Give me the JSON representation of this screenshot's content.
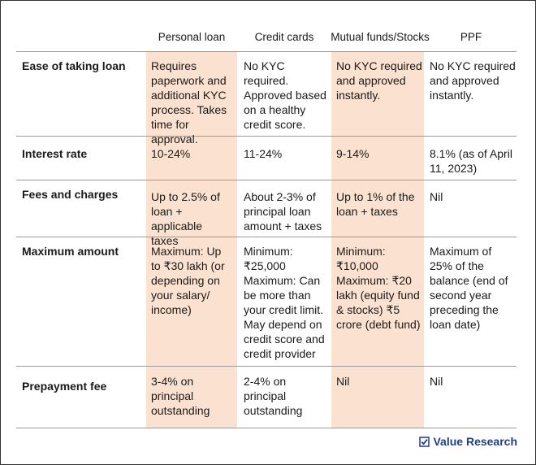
{
  "table": {
    "column_headers": [
      "Personal loan",
      "Credit cards",
      "Mutual funds/Stocks",
      "PPF"
    ],
    "rows": [
      {
        "label": "Ease of taking loan",
        "cells": [
          "Requires paperwork and additional KYC process. Takes time for approval.",
          "No KYC required. Approved based on a healthy credit score.",
          "No KYC required and approved instantly.",
          "No KYC required and approved instantly."
        ]
      },
      {
        "label": "Interest rate",
        "cells": [
          "10-24%",
          "11-24%",
          "9-14%",
          "8.1% (as of April 11, 2023)"
        ]
      },
      {
        "label": "Fees and charges",
        "cells": [
          "Up to 2.5% of loan + applicable taxes",
          "About 2-3% of principal loan amount + taxes",
          "Up to 1% of the loan + taxes",
          "Nil"
        ]
      },
      {
        "label": "Maximum amount",
        "cells": [
          "Maximum: Up to ₹30 lakh (or depending on your salary/ income)",
          "Minimum: ₹25,000 Maximum: Can be more than your credit limit. May depend on credit score and credit provider",
          "Minimum: ₹10,000 Maximum: ₹20 lakh (equity fund & stocks) ₹5 crore (debt fund)",
          "Maximum of 25% of the balance (end of second year preceding the loan date)"
        ]
      },
      {
        "label": "Prepayment fee",
        "cells": [
          "3-4% on principal outstanding",
          "2-4% on principal outstanding",
          "Nil",
          "Nil"
        ]
      }
    ]
  },
  "branding": {
    "logo_text": "Value Research",
    "logo_icon": "checkbox-check-icon",
    "logo_color": "#1d3f8f",
    "highlight_color": "#fbe1cf"
  }
}
